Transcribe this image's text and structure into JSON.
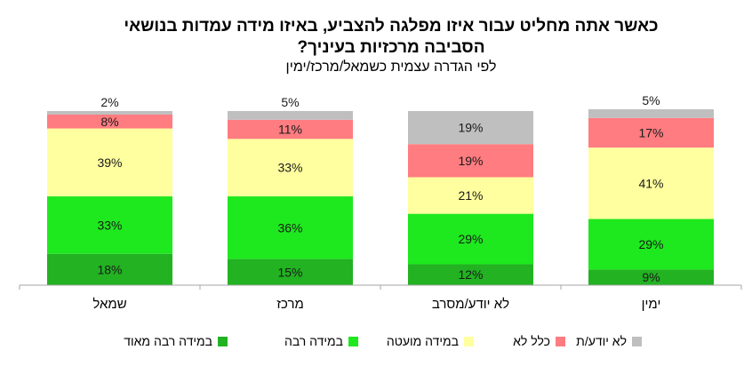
{
  "chart_data": {
    "type": "bar",
    "stacked": true,
    "title": "כאשר אתה מחליט עבור איזו מפלגה להצביע, באיזו מידה עמדות בנושאי הסביבה מרכזיות בעיניך?",
    "title_line1": "כאשר אתה מחליט עבור איזו מפלגה להצביע, באיזו מידה עמדות בנושאי",
    "title_line2": "הסביבה מרכזיות בעיניך?",
    "subtitle": "לפי הגדרה עצמית כשמאל/מרכז/ימין",
    "categories": [
      "שמאל",
      "מרכז",
      "לא יודע/מסרב",
      "ימין"
    ],
    "ylim": [
      0,
      100
    ],
    "legend_position": "bottom",
    "grid": false,
    "series": [
      {
        "name": "במידה רבה מאוד",
        "color": "#22b222",
        "values": [
          18,
          15,
          12,
          9
        ]
      },
      {
        "name": "במידה רבה",
        "color": "#1ee81e",
        "values": [
          33,
          36,
          29,
          29
        ]
      },
      {
        "name": "במידה מועטה",
        "color": "#ffff9f",
        "values": [
          39,
          33,
          21,
          41
        ]
      },
      {
        "name": "כלל לא",
        "color": "#ff7c80",
        "values": [
          8,
          11,
          19,
          17
        ]
      },
      {
        "name": "לא יודע/ת",
        "color": "#bfbfbf",
        "values": [
          2,
          5,
          19,
          5
        ]
      }
    ]
  }
}
